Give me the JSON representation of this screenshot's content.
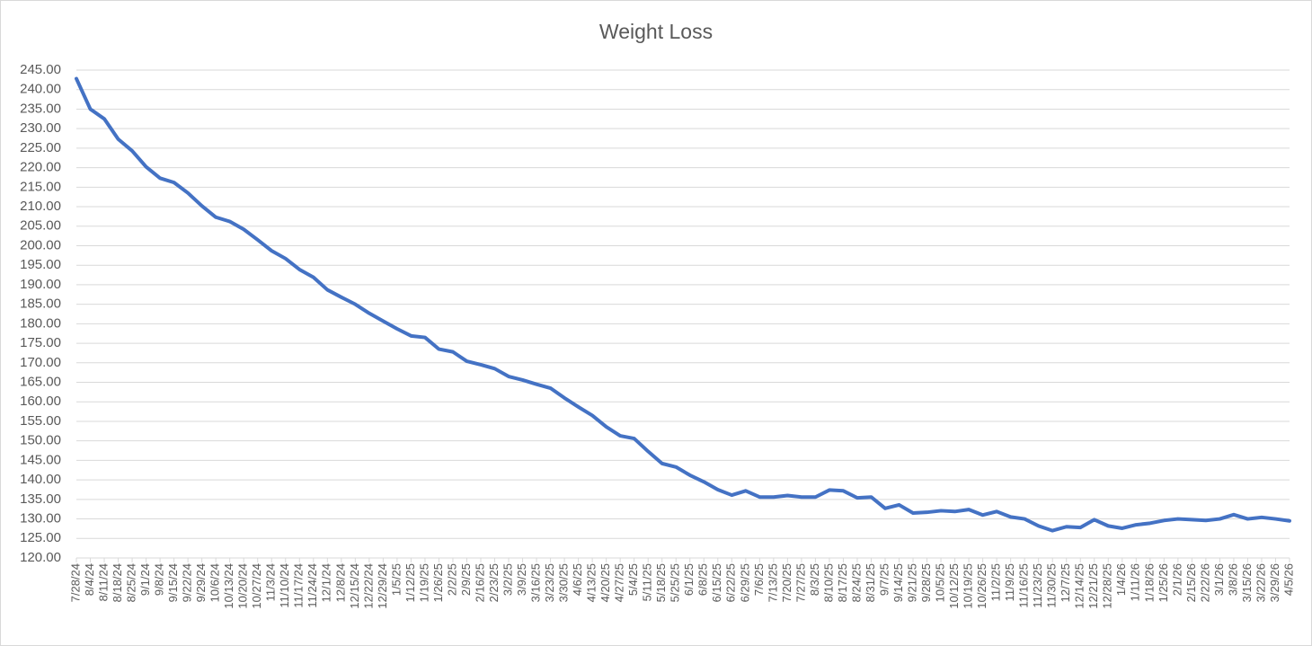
{
  "chart_data": {
    "type": "line",
    "title": "Weight Loss",
    "categories": [
      "7/28/24",
      "8/4/24",
      "8/11/24",
      "8/18/24",
      "8/25/24",
      "9/1/24",
      "9/8/24",
      "9/15/24",
      "9/22/24",
      "9/29/24",
      "10/6/24",
      "10/13/24",
      "10/20/24",
      "10/27/24",
      "11/3/24",
      "11/10/24",
      "11/17/24",
      "11/24/24",
      "12/1/24",
      "12/8/24",
      "12/15/24",
      "12/22/24",
      "12/29/24",
      "1/5/25",
      "1/12/25",
      "1/19/25",
      "1/26/25",
      "2/2/25",
      "2/9/25",
      "2/16/25",
      "2/23/25",
      "3/2/25",
      "3/9/25",
      "3/16/25",
      "3/23/25",
      "3/30/25",
      "4/6/25",
      "4/13/25",
      "4/20/25",
      "4/27/25",
      "5/4/25",
      "5/11/25",
      "5/18/25",
      "5/25/25",
      "6/1/25",
      "6/8/25",
      "6/15/25",
      "6/22/25",
      "6/29/25",
      "7/6/25",
      "7/13/25",
      "7/20/25",
      "7/27/25",
      "8/3/25",
      "8/10/25",
      "8/17/25",
      "8/24/25",
      "8/31/25",
      "9/7/25",
      "9/14/25",
      "9/21/25",
      "9/28/25",
      "10/5/25",
      "10/12/25",
      "10/19/25",
      "10/26/25",
      "11/2/25",
      "11/9/25",
      "11/16/25",
      "11/23/25",
      "11/30/25",
      "12/7/25",
      "12/14/25",
      "12/21/25",
      "12/28/25",
      "1/4/26",
      "1/11/26",
      "1/18/26",
      "1/25/26",
      "2/1/26",
      "2/15/26",
      "2/22/26",
      "3/1/26",
      "3/8/26",
      "3/15/26",
      "3/22/26",
      "3/29/26",
      "4/5/26"
    ],
    "series": [
      {
        "name": "Weight",
        "color": "#4472c4",
        "values": [
          242.8,
          235.0,
          232.5,
          227.3,
          224.3,
          220.2,
          217.3,
          216.2,
          213.5,
          210.2,
          207.3,
          206.2,
          204.2,
          201.5,
          198.7,
          196.7,
          193.9,
          191.9,
          188.7,
          186.8,
          185.0,
          182.7,
          180.7,
          178.7,
          176.9,
          176.5,
          173.5,
          172.8,
          170.4,
          169.5,
          168.5,
          166.5,
          165.6,
          164.5,
          163.5,
          161.0,
          158.7,
          156.5,
          153.6,
          151.3,
          150.6,
          147.3,
          144.2,
          143.3,
          141.2,
          139.5,
          137.5,
          136.1,
          137.2,
          135.6,
          135.6,
          136.0,
          135.6,
          135.6,
          137.4,
          137.2,
          135.4,
          135.6,
          132.7,
          133.6,
          131.5,
          131.7,
          132.1,
          131.9,
          132.4,
          131.0,
          131.9,
          130.5,
          130.0,
          128.2,
          127.0,
          128.0,
          127.8,
          129.8,
          128.2,
          127.6,
          128.5,
          128.9,
          129.6,
          130.0,
          129.8,
          129.6,
          130.0,
          131.1,
          130.0,
          130.4,
          130.0,
          129.5
        ]
      }
    ],
    "ylim": [
      120,
      245
    ],
    "yticks": [
      {
        "value": 120,
        "label": "120.00"
      },
      {
        "value": 125,
        "label": "125.00"
      },
      {
        "value": 130,
        "label": "130.00"
      },
      {
        "value": 135,
        "label": "135.00"
      },
      {
        "value": 140,
        "label": "140.00"
      },
      {
        "value": 145,
        "label": "145.00"
      },
      {
        "value": 150,
        "label": "150.00"
      },
      {
        "value": 155,
        "label": "155.00"
      },
      {
        "value": 160,
        "label": "160.00"
      },
      {
        "value": 165,
        "label": "165.00"
      },
      {
        "value": 170,
        "label": "170.00"
      },
      {
        "value": 175,
        "label": "175.00"
      },
      {
        "value": 180,
        "label": "180.00"
      },
      {
        "value": 185,
        "label": "185.00"
      },
      {
        "value": 190,
        "label": "190.00"
      },
      {
        "value": 195,
        "label": "195.00"
      },
      {
        "value": 200,
        "label": "200.00"
      },
      {
        "value": 205,
        "label": "205.00"
      },
      {
        "value": 210,
        "label": "210.00"
      },
      {
        "value": 215,
        "label": "215.00"
      },
      {
        "value": 220,
        "label": "220.00"
      },
      {
        "value": 225,
        "label": "225.00"
      },
      {
        "value": 230,
        "label": "230.00"
      },
      {
        "value": 235,
        "label": "235.00"
      },
      {
        "value": 240,
        "label": "240.00"
      },
      {
        "value": 245,
        "label": "245.00"
      }
    ],
    "grid": true
  }
}
